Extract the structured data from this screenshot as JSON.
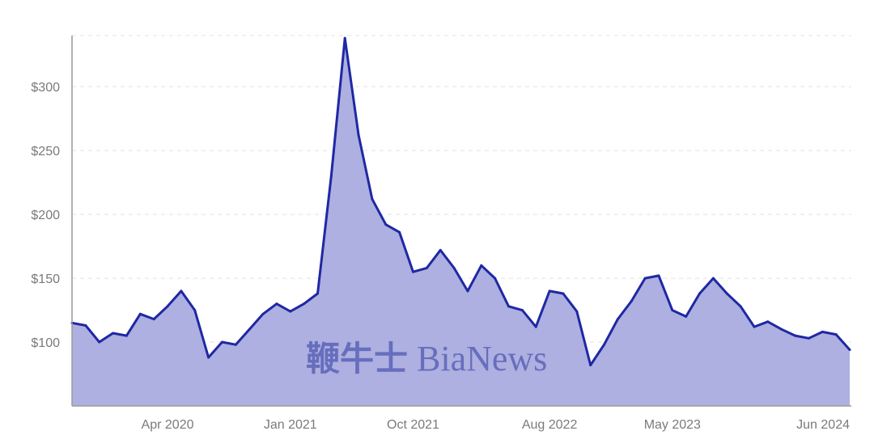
{
  "chart_data": {
    "type": "area",
    "title": "",
    "xlabel": "",
    "ylabel": "",
    "y_tick_labels": [
      "$100",
      "$150",
      "$200",
      "$250",
      "$300"
    ],
    "y_ticks": [
      100,
      150,
      200,
      250,
      300
    ],
    "ylim": [
      50,
      340
    ],
    "x_tick_labels": [
      "Apr 2020",
      "Jan 2021",
      "Oct 2021",
      "Aug 2022",
      "May 2023",
      "Jun 2024"
    ],
    "x_ticks": [
      "2020-04",
      "2021-01",
      "2021-10",
      "2022-08",
      "2023-05",
      "2024-06"
    ],
    "xlim": [
      "2019-09",
      "2024-06"
    ],
    "grid": true,
    "legend": "none",
    "line_color": "#1f28a3",
    "fill_color": "#adb0e0",
    "series": [
      {
        "x": [
          "2019-09",
          "2019-10",
          "2019-11",
          "2019-12",
          "2020-01",
          "2020-02",
          "2020-03",
          "2020-04",
          "2020-05",
          "2020-06",
          "2020-07",
          "2020-08",
          "2020-09",
          "2020-10",
          "2020-11",
          "2020-12",
          "2021-01",
          "2021-02",
          "2021-03",
          "2021-04",
          "2021-05",
          "2021-06",
          "2021-07",
          "2021-08",
          "2021-09",
          "2021-10",
          "2021-11",
          "2021-12",
          "2022-01",
          "2022-02",
          "2022-03",
          "2022-04",
          "2022-05",
          "2022-06",
          "2022-07",
          "2022-08",
          "2022-09",
          "2022-10",
          "2022-11",
          "2022-12",
          "2023-01",
          "2023-02",
          "2023-03",
          "2023-04",
          "2023-05",
          "2023-06",
          "2023-07",
          "2023-08",
          "2023-09",
          "2023-10",
          "2023-11",
          "2023-12",
          "2024-01",
          "2024-02",
          "2024-03",
          "2024-04",
          "2024-05",
          "2024-06"
        ],
        "values": [
          115,
          113,
          100,
          107,
          105,
          122,
          118,
          128,
          140,
          125,
          88,
          100,
          98,
          110,
          122,
          130,
          124,
          130,
          138,
          230,
          338,
          262,
          212,
          192,
          186,
          155,
          158,
          172,
          158,
          140,
          160,
          150,
          128,
          125,
          112,
          140,
          138,
          124,
          82,
          98,
          118,
          132,
          150,
          152,
          125,
          120,
          138,
          150,
          138,
          128,
          112,
          116,
          110,
          105,
          103,
          108,
          106,
          94
        ]
      }
    ]
  },
  "watermark": {
    "cn": "鞭牛士",
    "en": "BiaNews"
  }
}
